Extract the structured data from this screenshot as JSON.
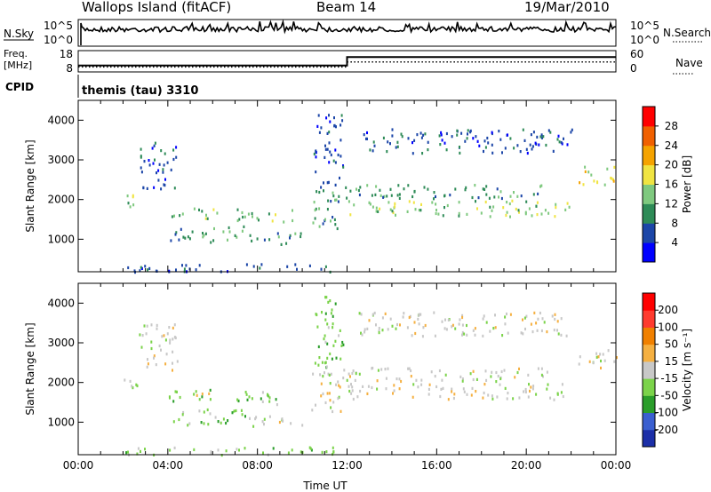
{
  "header": {
    "station": "Wallops Island (fitACF)",
    "beam": "Beam 14",
    "date": "19/Mar/2010"
  },
  "summary": {
    "nsky_label": "N.Sky",
    "nsky_ticks": [
      "10^5",
      "10^0"
    ],
    "nsearch_label": "N.Search",
    "nsearch_ticks": [
      "10^5",
      "10^0"
    ],
    "freq_label": "Freq.",
    "freq_unit": "[MHz]",
    "freq_ticks": [
      "18",
      "8"
    ],
    "nave_label": "Nave",
    "nave_ticks": [
      "60",
      "0"
    ],
    "cpid_label": "CPID",
    "cpid_text": "themis (tau) 3310",
    "freq_series": [
      {
        "t0": 0,
        "t1": 12,
        "v": 11
      },
      {
        "t0": 12,
        "t1": 24,
        "v": 15
      }
    ],
    "nave_series": [
      {
        "t0": 0,
        "t1": 12,
        "v": 14
      },
      {
        "t0": 12,
        "t1": 24,
        "v": 28
      }
    ]
  },
  "chart_data": [
    {
      "type": "heatmap",
      "name": "power",
      "ylabel": "Slant Range [km]",
      "xlabel": "",
      "x_ticks": [
        "00:00",
        "04:00",
        "08:00",
        "12:00",
        "16:00",
        "20:00",
        "00:00"
      ],
      "xlim": [
        0,
        24
      ],
      "y_ticks": [
        1000,
        2000,
        3000,
        4000
      ],
      "ylim": [
        180,
        4500
      ],
      "colorbar": {
        "label": "Power [dB]",
        "ticks": [
          "4",
          "8",
          "12",
          "16",
          "20",
          "24",
          "28"
        ],
        "colors": [
          "#0000ff",
          "#1c46a8",
          "#2e8b57",
          "#7fc97f",
          "#f0e442",
          "#f5a300",
          "#f06000",
          "#ff0000"
        ]
      },
      "regions": [
        {
          "t0": 4.0,
          "t1": 6.2,
          "r0": 1550,
          "r1": 1850,
          "level": 3
        },
        {
          "t0": 4.1,
          "t1": 7.6,
          "r0": 950,
          "r1": 1350,
          "level": 2
        },
        {
          "t0": 7.5,
          "t1": 10.0,
          "r0": 900,
          "r1": 1200,
          "level": 2
        },
        {
          "t0": 7.0,
          "t1": 9.6,
          "r0": 1450,
          "r1": 1800,
          "level": 3
        },
        {
          "t0": 1.8,
          "t1": 2.7,
          "r0": 1850,
          "r1": 2200,
          "level": 3
        },
        {
          "t0": 2.7,
          "t1": 4.4,
          "r0": 2300,
          "r1": 3500,
          "level": 1
        },
        {
          "t0": 10.4,
          "t1": 11.8,
          "r0": 1300,
          "r1": 2400,
          "level": 2
        },
        {
          "t0": 10.5,
          "t1": 11.8,
          "r0": 2400,
          "r1": 4200,
          "level": 1
        },
        {
          "t0": 12.0,
          "t1": 22.0,
          "r0": 1600,
          "r1": 2000,
          "level": 3
        },
        {
          "t0": 11.8,
          "t1": 21.0,
          "r0": 2050,
          "r1": 2400,
          "level": 2
        },
        {
          "t0": 12.5,
          "t1": 22.2,
          "r0": 3200,
          "r1": 3800,
          "level": 1
        },
        {
          "t0": 22.2,
          "t1": 24.0,
          "r0": 2400,
          "r1": 2900,
          "level": 4
        },
        {
          "t0": 2.0,
          "t1": 11.5,
          "r0": 200,
          "r1": 400,
          "level": 1
        }
      ]
    },
    {
      "type": "heatmap",
      "name": "velocity",
      "ylabel": "Slant Range [km]",
      "xlabel": "Time UT",
      "x_ticks": [
        "00:00",
        "04:00",
        "08:00",
        "12:00",
        "16:00",
        "20:00",
        "00:00"
      ],
      "xlim": [
        0,
        24
      ],
      "y_ticks": [
        1000,
        2000,
        3000,
        4000
      ],
      "ylim": [
        180,
        4500
      ],
      "colorbar": {
        "label": "Velocity [m s⁻¹]",
        "ticks": [
          "200",
          "100",
          "50",
          "15",
          "-15",
          "-50",
          "-100",
          "-200"
        ],
        "colors": [
          "#1c2fa8",
          "#3a5fd0",
          "#2a9d2a",
          "#7bd34a",
          "#c8c8c8",
          "#f5b041",
          "#f08000",
          "#ff3b2f",
          "#ff0000"
        ]
      },
      "regions": [
        {
          "t0": 4.0,
          "t1": 6.2,
          "r0": 1550,
          "r1": 1850,
          "level": 3
        },
        {
          "t0": 4.1,
          "t1": 7.6,
          "r0": 950,
          "r1": 1350,
          "level": 3
        },
        {
          "t0": 7.5,
          "t1": 10.0,
          "r0": 900,
          "r1": 1200,
          "level": 4
        },
        {
          "t0": 7.0,
          "t1": 9.6,
          "r0": 1450,
          "r1": 1800,
          "level": 3
        },
        {
          "t0": 1.8,
          "t1": 2.7,
          "r0": 1850,
          "r1": 2200,
          "level": 4
        },
        {
          "t0": 2.7,
          "t1": 4.4,
          "r0": 2300,
          "r1": 3500,
          "level": 4
        },
        {
          "t0": 10.4,
          "t1": 11.8,
          "r0": 1300,
          "r1": 2400,
          "level": 4
        },
        {
          "t0": 10.5,
          "t1": 11.8,
          "r0": 2400,
          "r1": 4200,
          "level": 3
        },
        {
          "t0": 12.0,
          "t1": 22.0,
          "r0": 1600,
          "r1": 2000,
          "level": 4
        },
        {
          "t0": 11.8,
          "t1": 21.0,
          "r0": 2050,
          "r1": 2400,
          "level": 4
        },
        {
          "t0": 12.5,
          "t1": 22.2,
          "r0": 3200,
          "r1": 3800,
          "level": 4
        },
        {
          "t0": 22.2,
          "t1": 24.0,
          "r0": 2400,
          "r1": 2900,
          "level": 4
        },
        {
          "t0": 2.0,
          "t1": 11.5,
          "r0": 200,
          "r1": 400,
          "level": 3
        },
        {
          "t0": 5.0,
          "t1": 6.0,
          "r0": 1650,
          "r1": 1800,
          "level": 5
        }
      ]
    }
  ]
}
